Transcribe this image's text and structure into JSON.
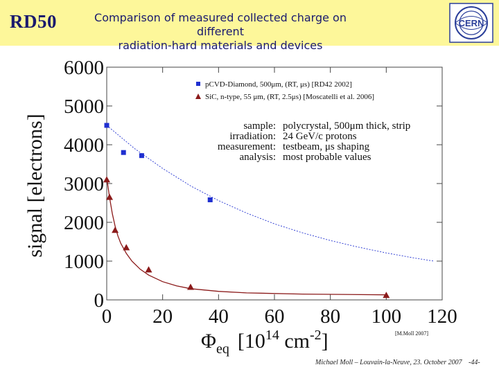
{
  "header": {
    "logo_text": "RD50",
    "title_line1": "Comparison of measured collected charge on different",
    "title_line2": "radiation-hard materials and devices",
    "cern_logo_text": "CERN"
  },
  "footer": {
    "text": "Michael Moll – Louvain-la-Neuve, 23. October 2007",
    "page": "-44-"
  },
  "chart_data": {
    "type": "scatter",
    "ylabel": "signal [electrons]",
    "xlabel": {
      "symbol": "Φ",
      "sub": "eq",
      "unit_pre": "[10",
      "unit_sup": "14",
      "unit_mid": " cm",
      "unit_sup2": "-2",
      "unit_post": "]"
    },
    "xlim": [
      0,
      120
    ],
    "ylim": [
      0,
      6000
    ],
    "xticks": [
      "0",
      "20",
      "40",
      "60",
      "80",
      "100",
      "120"
    ],
    "yticks": [
      "0",
      "1000",
      "2000",
      "3000",
      "4000",
      "5000",
      "6000"
    ],
    "xtick_values": [
      0,
      20,
      40,
      60,
      80,
      100,
      120
    ],
    "ytick_values": [
      0,
      1000,
      2000,
      3000,
      4000,
      5000,
      6000
    ],
    "legend_position": "top-right",
    "series": [
      {
        "name": "pCVD-Diamond, 500μm, (RT, μs) [RD42 2002]",
        "marker": "square",
        "color": "#1f2fd0",
        "points": [
          [
            0,
            4500
          ],
          [
            6,
            3800
          ],
          [
            12.5,
            3720
          ],
          [
            37,
            2580
          ]
        ],
        "fit": {
          "style": "dotted",
          "points": [
            [
              0,
              4500
            ],
            [
              10,
              3900
            ],
            [
              20,
              3390
            ],
            [
              30,
              2940
            ],
            [
              40,
              2560
            ],
            [
              50,
              2240
            ],
            [
              60,
              1960
            ],
            [
              70,
              1730
            ],
            [
              80,
              1530
            ],
            [
              90,
              1360
            ],
            [
              100,
              1210
            ],
            [
              110,
              1080
            ],
            [
              117,
              1000
            ]
          ]
        }
      },
      {
        "name": "SiC, n-type, 55 μm, (RT, 2.5μs) [Moscatelli et al. 2006]",
        "marker": "triangle",
        "color": "#8b1a1a",
        "points": [
          [
            0,
            3100
          ],
          [
            1,
            2650
          ],
          [
            3,
            1800
          ],
          [
            7,
            1350
          ],
          [
            15,
            780
          ],
          [
            30,
            330
          ],
          [
            100,
            120
          ]
        ],
        "fit": {
          "style": "solid",
          "points": [
            [
              0,
              3150
            ],
            [
              1,
              2650
            ],
            [
              2,
              2220
            ],
            [
              3,
              1900
            ],
            [
              4,
              1650
            ],
            [
              5,
              1460
            ],
            [
              7,
              1200
            ],
            [
              9,
              1000
            ],
            [
              12,
              790
            ],
            [
              15,
              640
            ],
            [
              20,
              470
            ],
            [
              25,
              360
            ],
            [
              30,
              290
            ],
            [
              40,
              220
            ],
            [
              50,
              180
            ],
            [
              70,
              150
            ],
            [
              100,
              130
            ]
          ]
        }
      }
    ],
    "annotation": {
      "labels": [
        "sample:",
        "irradiation:",
        "measurement:",
        "analysis:"
      ],
      "values": [
        "polycrystal, 500μm thick, strip",
        "24 GeV/c protons",
        "testbeam, μs shaping",
        "most probable values"
      ]
    },
    "credit": "[M.Moll 2007]"
  }
}
